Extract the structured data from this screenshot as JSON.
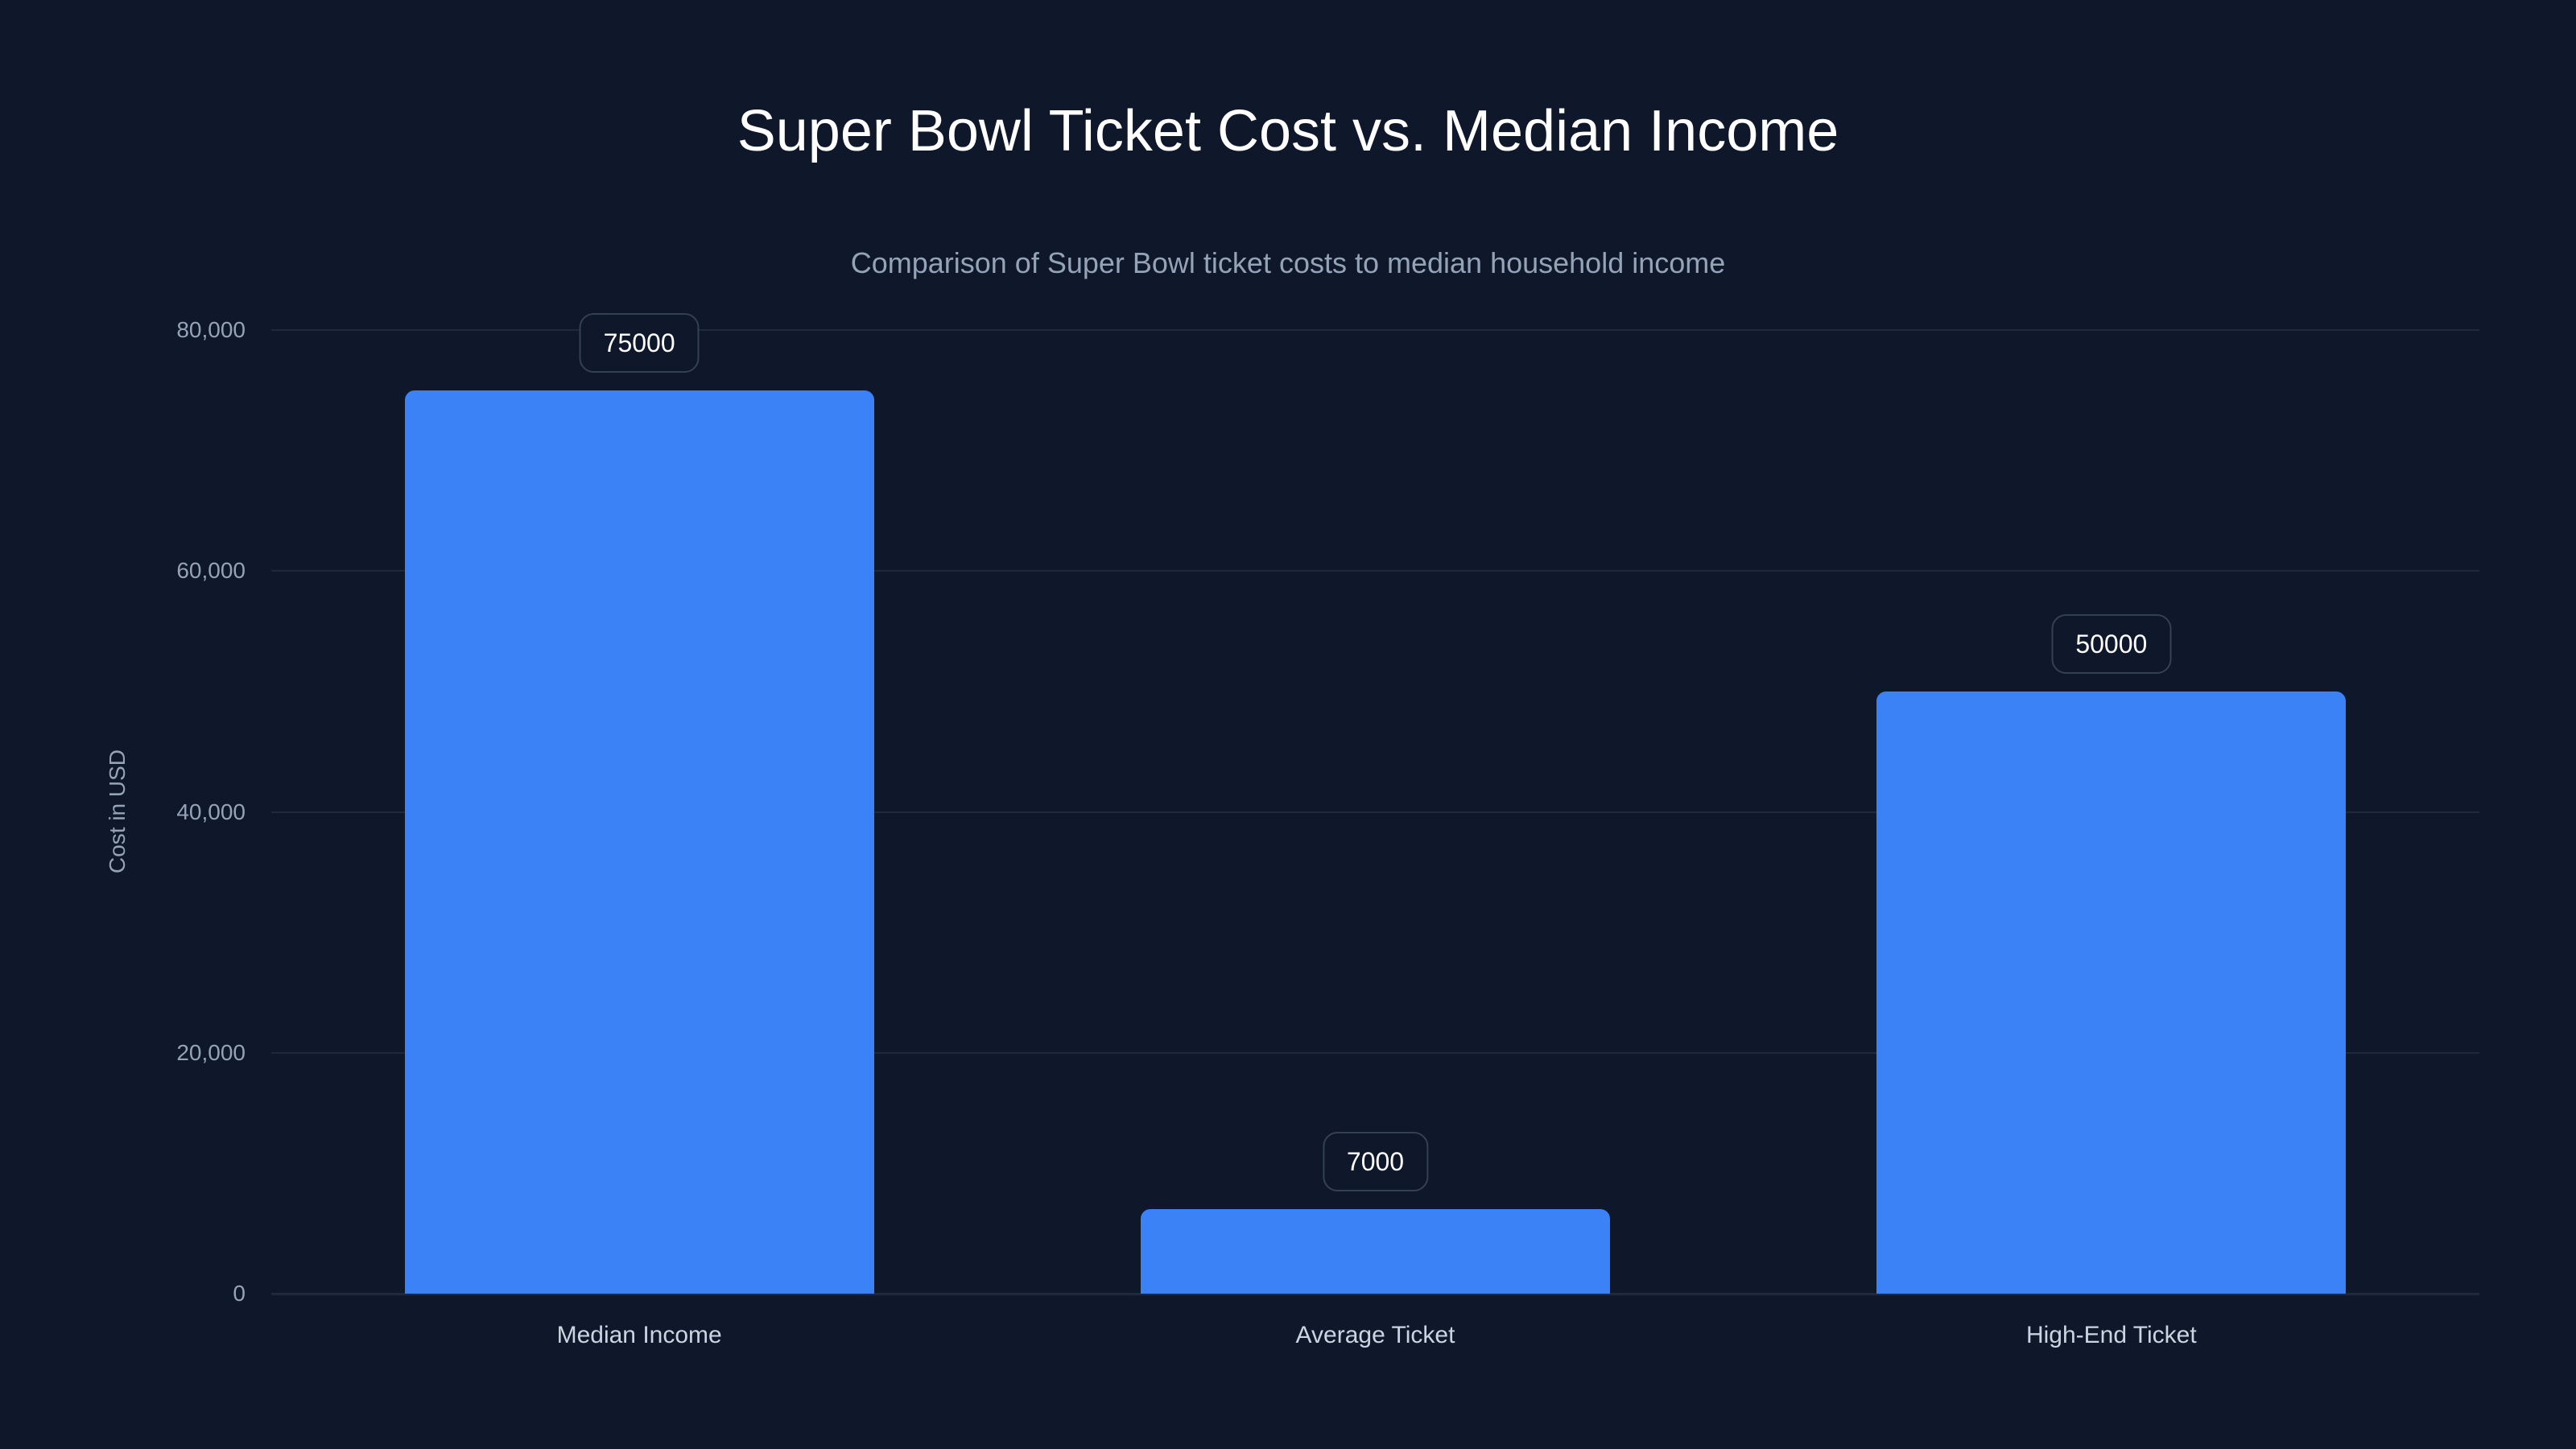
{
  "chart_data": {
    "type": "bar",
    "title": "Super Bowl Ticket Cost vs. Median Income",
    "subtitle": "Comparison of Super Bowl ticket costs to median household income",
    "xlabel": "",
    "ylabel": "Cost in USD",
    "categories": [
      "Median Income",
      "Average Ticket",
      "High-End Ticket"
    ],
    "values": [
      75000,
      7000,
      50000
    ],
    "value_labels": [
      "75000",
      "7000",
      "50000"
    ],
    "ylim": [
      0,
      80000
    ],
    "yticks": [
      0,
      20000,
      40000,
      60000,
      80000
    ],
    "ytick_labels": [
      "0",
      "20,000",
      "40,000",
      "60,000",
      "80,000"
    ],
    "grid": true,
    "legend": null,
    "bar_color": "#3b82f6",
    "background_color": "#0f172a"
  },
  "header": {
    "title": "Super Bowl Ticket Cost vs. Median Income",
    "subtitle": "Comparison of Super Bowl ticket costs to median household income"
  },
  "axes": {
    "ylabel": "Cost in USD",
    "yticks": [
      "0",
      "20,000",
      "40,000",
      "60,000",
      "80,000"
    ],
    "xticks": [
      "Median Income",
      "Average Ticket",
      "High-End Ticket"
    ]
  },
  "bars": [
    {
      "label": "Median Income",
      "value": 75000,
      "value_label": "75000"
    },
    {
      "label": "Average Ticket",
      "value": 7000,
      "value_label": "7000"
    },
    {
      "label": "High-End Ticket",
      "value": 50000,
      "value_label": "50000"
    }
  ]
}
